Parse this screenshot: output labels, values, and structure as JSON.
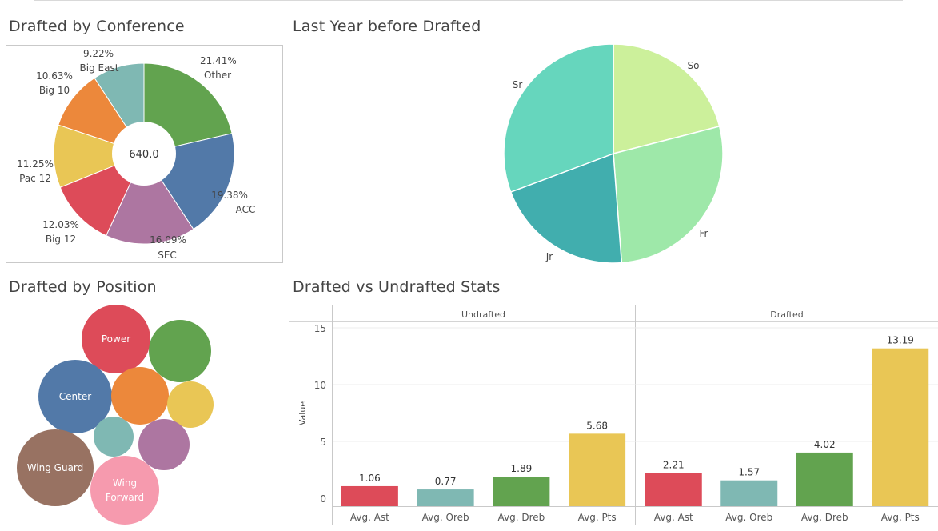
{
  "titles": {
    "conference": "Drafted by Conference",
    "last_year": "Last Year before Drafted",
    "position": "Drafted by Position",
    "stats": "Drafted vs Undrafted Stats"
  },
  "chart_data": [
    {
      "type": "pie",
      "variant": "donut",
      "title": "Drafted by Conference",
      "center_label": "640.0",
      "slices": [
        {
          "label": "Other",
          "pct_text": "21.41%",
          "value": 21.41,
          "color": "#62a34f"
        },
        {
          "label": "ACC",
          "pct_text": "19.38%",
          "value": 19.38,
          "color": "#5279a8"
        },
        {
          "label": "SEC",
          "pct_text": "16.09%",
          "value": 16.09,
          "color": "#ad76a1"
        },
        {
          "label": "Big 12",
          "pct_text": "12.03%",
          "value": 12.03,
          "color": "#dd4b59"
        },
        {
          "label": "Pac 12",
          "pct_text": "11.25%",
          "value": 11.25,
          "color": "#e9c655"
        },
        {
          "label": "Big 10",
          "pct_text": "10.63%",
          "value": 10.63,
          "color": "#ec883b"
        },
        {
          "label": "Big East",
          "pct_text": "9.22%",
          "value": 9.22,
          "color": "#7fb8b3"
        }
      ]
    },
    {
      "type": "pie",
      "title": "Last Year before Drafted",
      "slices": [
        {
          "label": "So",
          "value": 21.0,
          "color": "#ccf09b"
        },
        {
          "label": "Fr",
          "value": 27.8,
          "color": "#9ee8a9"
        },
        {
          "label": "Jr",
          "value": 20.5,
          "color": "#41aeae"
        },
        {
          "label": "Sr",
          "value": 30.7,
          "color": "#66d6bd"
        }
      ]
    },
    {
      "type": "bubble",
      "title": "Drafted by Position",
      "bubbles": [
        {
          "label": "Power",
          "color": "#dd4b59",
          "size": 43
        },
        {
          "label": "",
          "color": "#62a34f",
          "size": 39
        },
        {
          "label": "Center",
          "color": "#5279a8",
          "size": 46
        },
        {
          "label": "",
          "color": "#ec883b",
          "size": 36
        },
        {
          "label": "",
          "color": "#e9c655",
          "size": 29
        },
        {
          "label": "",
          "color": "#7fb8b3",
          "size": 25
        },
        {
          "label": "",
          "color": "#ad76a1",
          "size": 32
        },
        {
          "label": "Wing Guard",
          "color": "#987262",
          "size": 48
        },
        {
          "label": "Wing Forward",
          "color": "#f69aae",
          "size": 43
        }
      ]
    },
    {
      "type": "bar",
      "title": "Drafted vs Undrafted Stats",
      "ylabel": "Value",
      "ylim": [
        0,
        16
      ],
      "yticks": [
        0,
        5,
        10,
        15
      ],
      "categories": [
        "Avg. Ast",
        "Avg. Oreb",
        "Avg. Dreb",
        "Avg. Pts"
      ],
      "colors": [
        "#dd4b59",
        "#7fb8b3",
        "#62a34f",
        "#e9c655"
      ],
      "panels": [
        {
          "name": "Undrafted",
          "values": [
            1.06,
            0.77,
            1.89,
            5.68
          ],
          "labels": [
            "1.06",
            "0.77",
            "1.89",
            "5.68"
          ]
        },
        {
          "name": "Drafted",
          "values": [
            2.21,
            1.57,
            4.02,
            13.19
          ],
          "labels": [
            "2.21",
            "1.57",
            "4.02",
            "13.19"
          ]
        }
      ]
    }
  ]
}
